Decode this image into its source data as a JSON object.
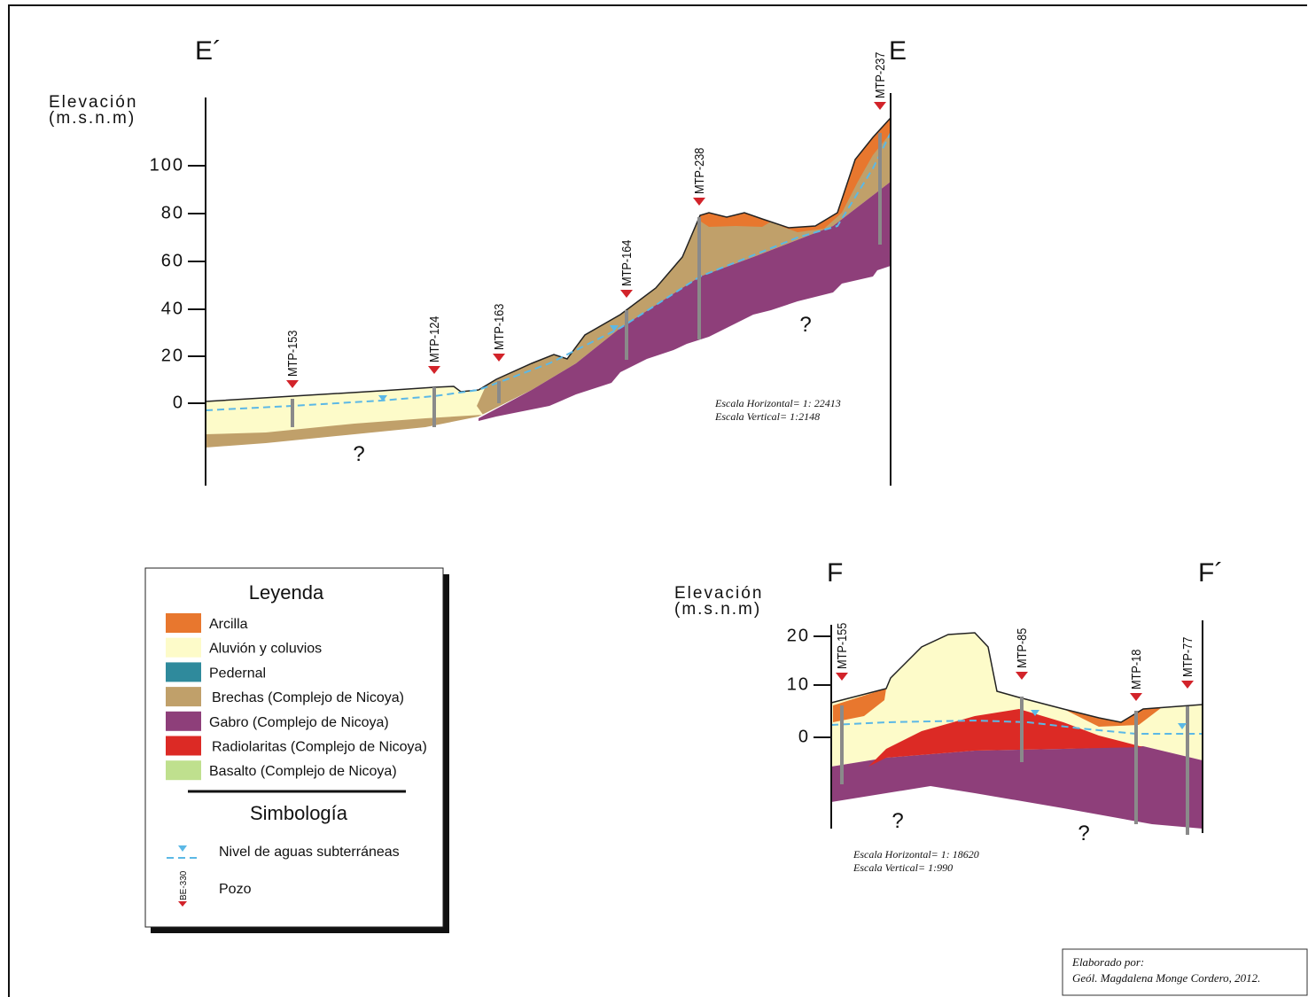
{
  "section_e": {
    "end_left": "E´",
    "end_right": "E",
    "axis_label": [
      "Elevación",
      "(m.s.n.m)"
    ],
    "ticks": [
      "100",
      "80",
      "60",
      "40",
      "20",
      "0"
    ],
    "wells": [
      "MTP-153",
      "MTP-124",
      "MTP-163",
      "MTP-164",
      "MTP-238",
      "MTP-237"
    ],
    "unknown": [
      "?",
      "?"
    ],
    "scale": [
      "Escala Horizontal=  1: 22413",
      "Escala Vertical= 1:2148"
    ]
  },
  "section_f": {
    "end_left": "F",
    "end_right": "F´",
    "axis_label": [
      "Elevación",
      "(m.s.n.m)"
    ],
    "ticks": [
      "20",
      "10",
      "0"
    ],
    "wells": [
      "MTP-155",
      "MTP-85",
      "MTP-18",
      "MTP-77"
    ],
    "unknown": [
      "?",
      "?"
    ],
    "scale": [
      "Escala Horizontal= 1: 18620",
      "Escala Vertical= 1:990"
    ]
  },
  "legend": {
    "title": "Leyenda",
    "items": [
      {
        "name": "Arcilla",
        "color": "#e8772e"
      },
      {
        "name": "Aluvión y coluvios",
        "color": "#fdfbc9"
      },
      {
        "name": "Pedernal",
        "color": "#2f8a9c"
      },
      {
        "name": "Brechas (Complejo de Nicoya)",
        "color": "#c0a06a"
      },
      {
        "name": "Gabro (Complejo de Nicoya)",
        "color": "#8e3f7a"
      },
      {
        "name": "Radiolaritas (Complejo de Nicoya)",
        "color": "#dc2a25"
      },
      {
        "name": "Basalto (Complejo de Nicoya)",
        "color": "#bfe08e"
      }
    ],
    "symbology_title": "Simbología",
    "symbols": [
      "Nivel de aguas subterráneas",
      "Pozo"
    ],
    "well_example": "BE-330"
  },
  "credit": [
    "Elaborado por:",
    "Geól. Magdalena Monge Cordero, 2012."
  ]
}
